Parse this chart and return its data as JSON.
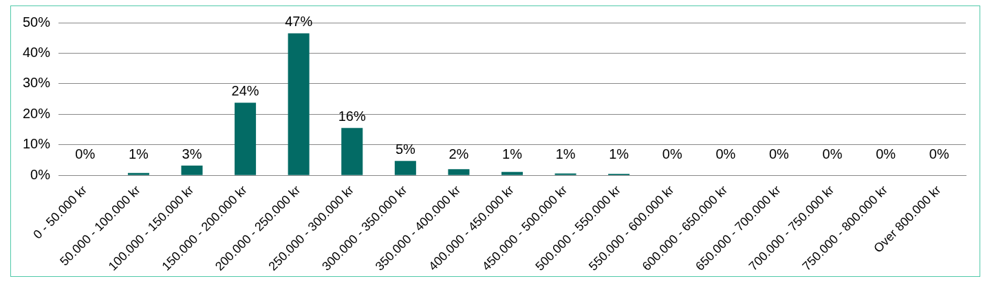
{
  "chart_data": {
    "type": "bar",
    "categories": [
      "0 - 50.000 kr",
      "50.000 - 100.000 kr",
      "100.000 - 150.000 kr",
      "150.000 - 200.000 kr",
      "200.000 - 250.000 kr",
      "250.000 - 300.000 kr",
      "300.000 - 350.000 kr",
      "350.000 - 400.000 kr",
      "400.000 - 450.000 kr",
      "450.000 - 500.000 kr",
      "500.000 - 550.000 kr",
      "550.000 - 600.000 kr",
      "600.000 - 650.000 kr",
      "650.000 - 700.000 kr",
      "700.000 - 750.000 kr",
      "750.000 - 800.000 kr",
      "Over 800.000 kr"
    ],
    "values": [
      0,
      0.8,
      3.2,
      23.8,
      46.5,
      15.5,
      4.7,
      2,
      1.1,
      0.6,
      0.5,
      0.1,
      0,
      0,
      0,
      0,
      0.1
    ],
    "value_labels": [
      "0%",
      "1%",
      "3%",
      "24%",
      "47%",
      "16%",
      "5%",
      "2%",
      "1%",
      "1%",
      "1%",
      "0%",
      "0%",
      "0%",
      "0%",
      "0%",
      "0%"
    ],
    "color": "#036b65",
    "ylim": [
      0,
      50
    ],
    "yticks": [
      {
        "value": 0,
        "label": "0%"
      },
      {
        "value": 10,
        "label": "10%"
      },
      {
        "value": 20,
        "label": "20%"
      },
      {
        "value": 30,
        "label": "30%"
      },
      {
        "value": 40,
        "label": "40%"
      },
      {
        "value": 50,
        "label": "50%"
      }
    ],
    "grid": "y"
  }
}
